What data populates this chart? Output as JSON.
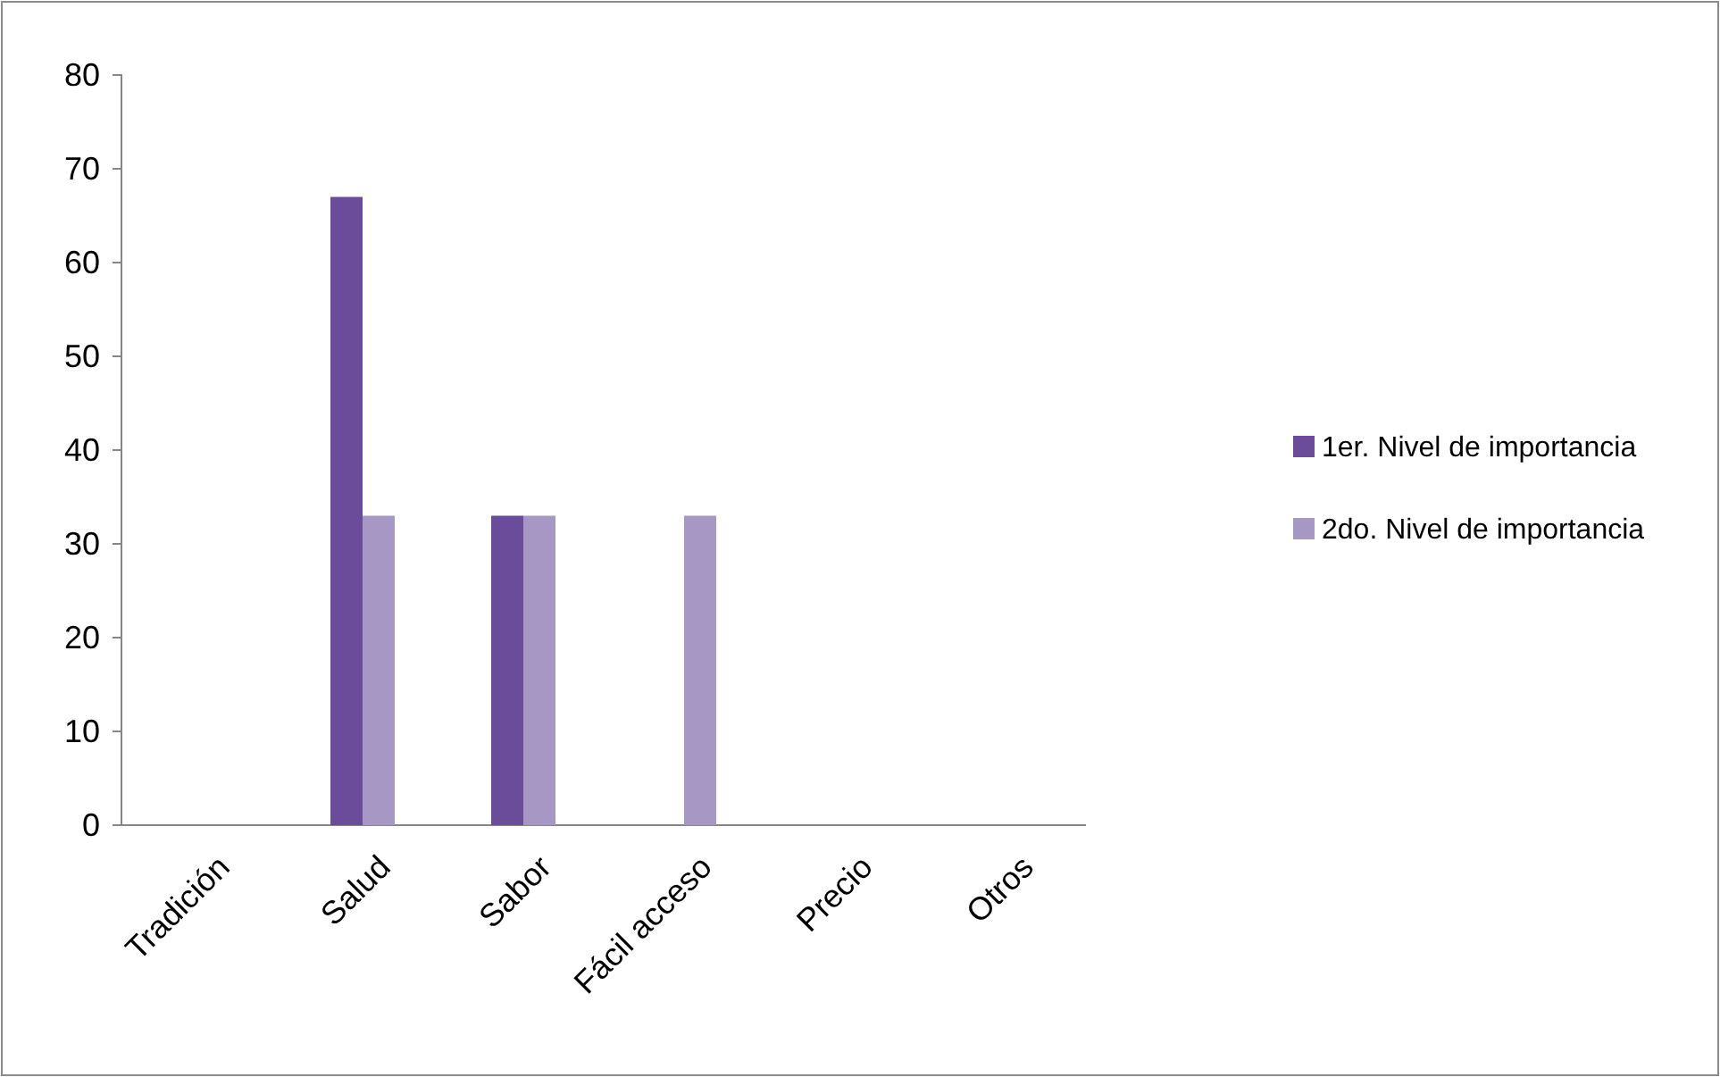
{
  "chart_data": {
    "type": "bar",
    "categories": [
      "Tradición",
      "Salud",
      "Sabor",
      "Fácil acceso",
      "Precio",
      "Otros"
    ],
    "series": [
      {
        "name": "1er. Nivel de importancia",
        "color": "#6b4c9a",
        "values": [
          0,
          67,
          33,
          0,
          0,
          0
        ]
      },
      {
        "name": "2do. Nivel de importancia",
        "color": "#a697c4",
        "values": [
          0,
          33,
          33,
          33,
          0,
          0
        ]
      }
    ],
    "ylim": [
      0,
      80
    ],
    "yticks": [
      0,
      10,
      20,
      30,
      40,
      50,
      60,
      70,
      80
    ],
    "grid": false,
    "legend": "right"
  }
}
